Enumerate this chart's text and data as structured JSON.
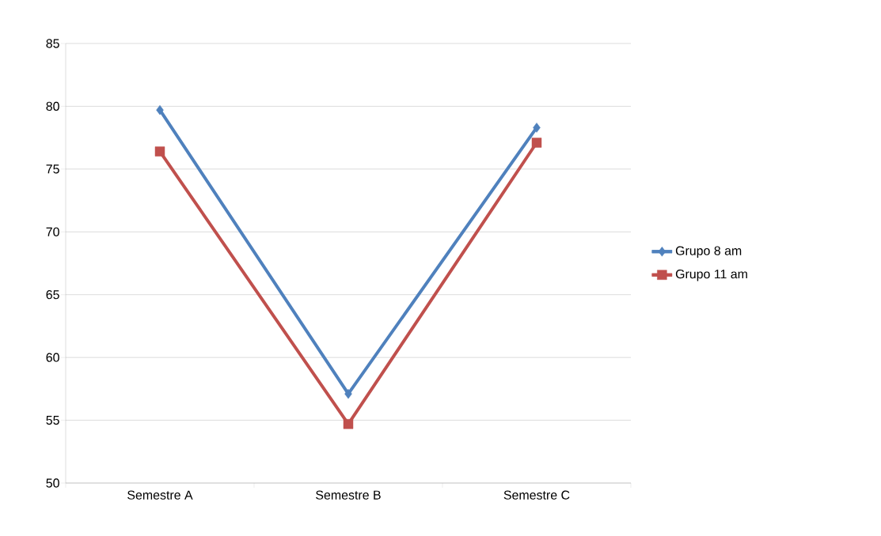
{
  "chart_data": {
    "type": "line",
    "categories": [
      "Semestre A",
      "Semestre B",
      "Semestre C"
    ],
    "series": [
      {
        "name": "Grupo 8 am",
        "color": "#4f81bd",
        "marker": "diamond",
        "values": [
          79.7,
          57.1,
          78.3
        ]
      },
      {
        "name": "Grupo 11 am",
        "color": "#c0504d",
        "marker": "square",
        "values": [
          76.4,
          54.7,
          77.1
        ]
      }
    ],
    "ylim": [
      50,
      85
    ],
    "yticks": [
      50,
      55,
      60,
      65,
      70,
      75,
      80,
      85
    ],
    "grid": "y",
    "legend": "right",
    "line_style": "solid"
  }
}
